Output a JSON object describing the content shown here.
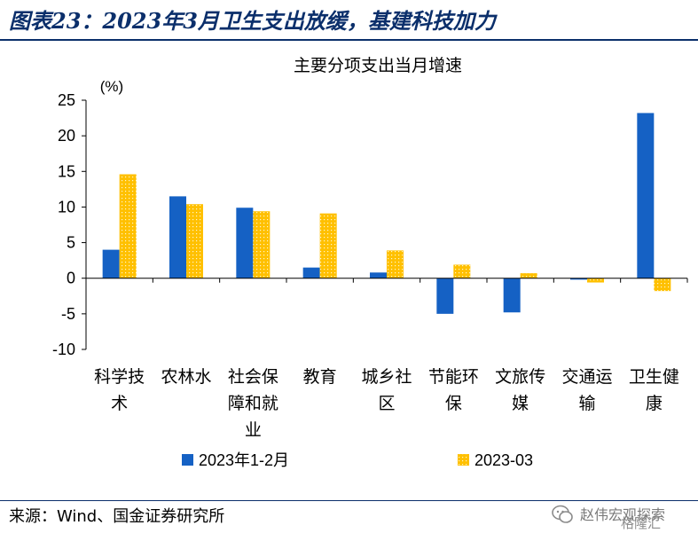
{
  "figure_title": "图表23：2023年3月卫生支出放缓，基建科技加力",
  "source": "来源：Wind、国金证券研究所",
  "watermark": {
    "text": "赵伟宏观探索",
    "sub": "格隆汇"
  },
  "colors": {
    "series1": "#1561c4",
    "series2": "#ffc000",
    "title_blue": "#0b2f6b"
  },
  "chart_data": {
    "type": "bar",
    "title": "主要分项支出当月增速",
    "ylabel": "(%)",
    "ylim": [
      -10,
      25
    ],
    "yticks": [
      -10,
      -5,
      0,
      5,
      10,
      15,
      20,
      25
    ],
    "categories": [
      [
        "科学技",
        "术"
      ],
      [
        "农林水"
      ],
      [
        "社会保",
        "障和就",
        "业"
      ],
      [
        "教育"
      ],
      [
        "城乡社",
        "区"
      ],
      [
        "节能环",
        "保"
      ],
      [
        "文旅传",
        "媒"
      ],
      [
        "交通运",
        "输"
      ],
      [
        "卫生健",
        "康"
      ]
    ],
    "series": [
      {
        "name": "2023年1-2月",
        "values": [
          4.0,
          11.5,
          9.9,
          1.5,
          0.8,
          -5.0,
          -4.8,
          -0.2,
          23.2
        ]
      },
      {
        "name": "2023-03",
        "values": [
          14.6,
          10.4,
          9.4,
          9.1,
          3.9,
          1.9,
          0.7,
          -0.6,
          -1.8
        ]
      }
    ],
    "legend_position": "bottom",
    "grid": false
  }
}
